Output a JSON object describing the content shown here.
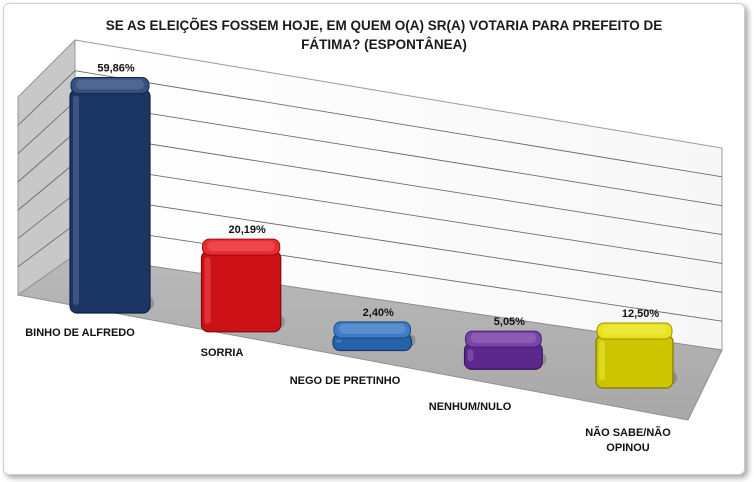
{
  "chart_data": {
    "type": "bar",
    "title_lines": [
      "SE AS ELEIÇÕES FOSSEM HOJE, EM QUEM O(A) SR(A) VOTARIA PARA PREFEITO DE",
      "FÁTIMA? (ESPONTÂNEA)"
    ],
    "categories": [
      [
        "BINHO DE ALFREDO"
      ],
      [
        "SORRIA"
      ],
      [
        "NEGO DE PRETINHO"
      ],
      [
        "NENHUM/NULO"
      ],
      [
        "NÃO SABE/NÃO",
        "OPINOU"
      ]
    ],
    "values": [
      59.86,
      20.19,
      2.4,
      5.05,
      12.5
    ],
    "data_labels": [
      "59,86%",
      "20,19%",
      "2,40%",
      "5,05%",
      "12,50%"
    ],
    "colors": [
      "#1f3d73",
      "#e8141a",
      "#2a6fc2",
      "#6a2ea0",
      "#e8e000"
    ],
    "ylim": [
      0,
      70
    ],
    "grid": true,
    "legend": "none",
    "style": "3d-perspective"
  }
}
